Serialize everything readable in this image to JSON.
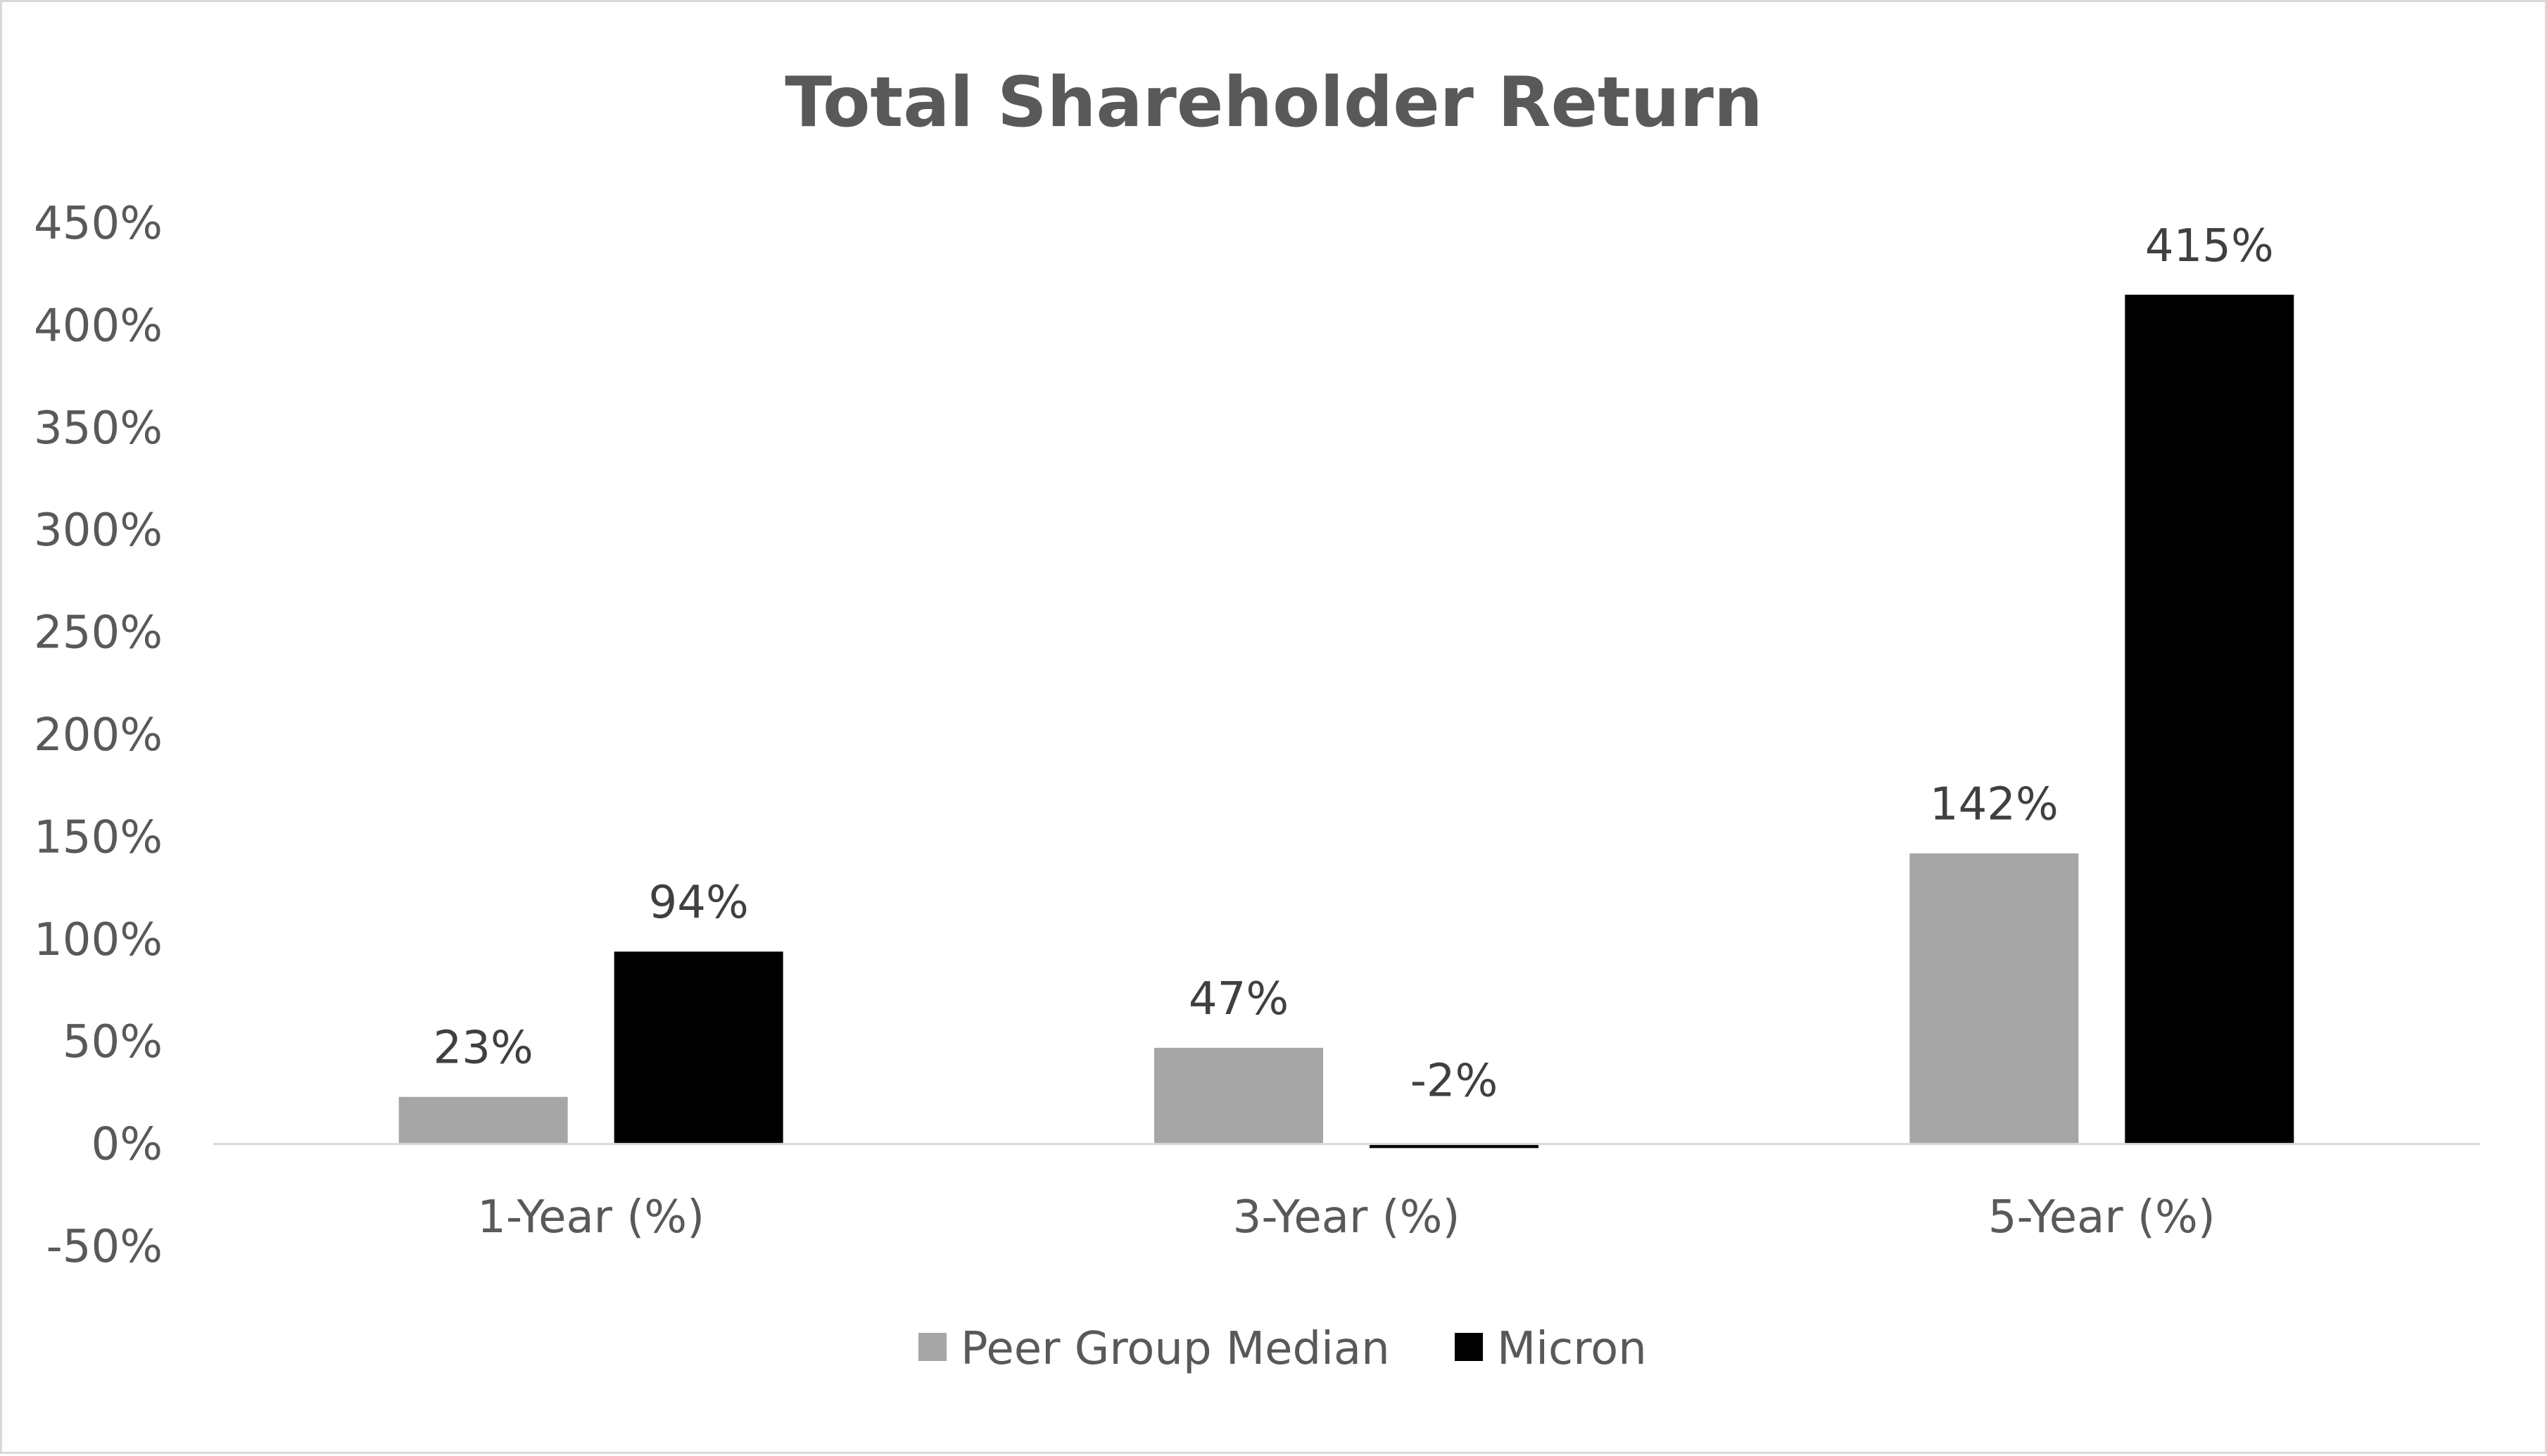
{
  "chart_data": {
    "type": "bar",
    "title": "Total Shareholder Return",
    "xlabel": "",
    "ylabel": "",
    "categories": [
      "1-Year (%)",
      "3-Year (%)",
      "5-Year (%)"
    ],
    "series": [
      {
        "name": "Peer Group Median",
        "values": [
          23,
          47,
          142
        ],
        "labels": [
          "23%",
          "47%",
          "142%"
        ],
        "color": "#a6a6a6"
      },
      {
        "name": "Micron",
        "values": [
          94,
          -2,
          415
        ],
        "labels": [
          "94%",
          "-2%",
          "415%"
        ],
        "color": "#000000"
      }
    ],
    "ylim": [
      -50,
      450
    ],
    "y_ticks": [
      450,
      400,
      350,
      300,
      250,
      200,
      150,
      100,
      50,
      0,
      -50
    ],
    "y_tick_labels": [
      "450%",
      "400%",
      "350%",
      "300%",
      "250%",
      "200%",
      "150%",
      "100%",
      "50%",
      "0%",
      "-50%"
    ],
    "grid": false,
    "legend_position": "bottom",
    "axis_color": "#d9d9d9",
    "text_color": "#595959"
  }
}
